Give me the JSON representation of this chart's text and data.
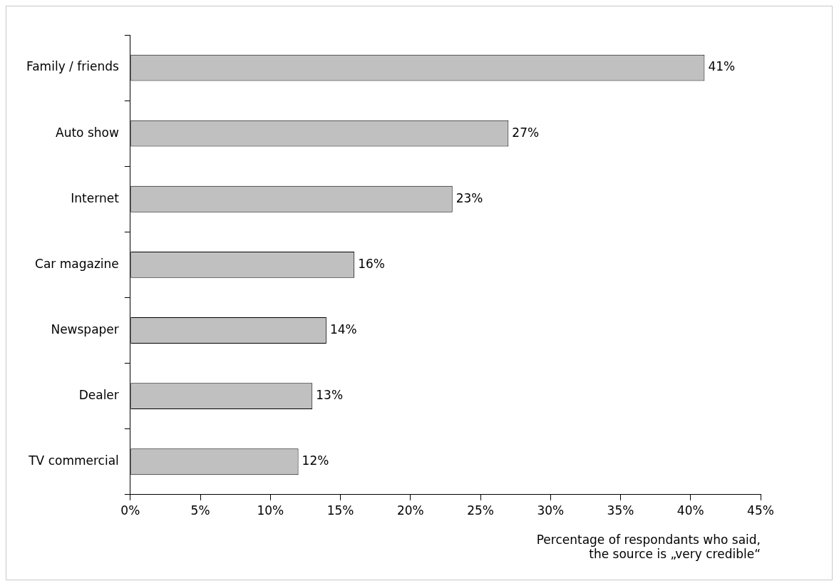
{
  "chart_data": {
    "type": "bar",
    "orientation": "horizontal",
    "categories": [
      "Family / friends",
      "Auto show",
      "Internet",
      "Car magazine",
      "Newspaper",
      "Dealer",
      "TV commercial"
    ],
    "values": [
      41,
      27,
      23,
      16,
      14,
      13,
      12
    ],
    "value_labels": [
      "41%",
      "27%",
      "23%",
      "16%",
      "14%",
      "13%",
      "12%"
    ],
    "color": "#c0c0c0",
    "xlim": [
      0,
      45
    ],
    "xticks": [
      {
        "value": 0,
        "label": "0%"
      },
      {
        "value": 5,
        "label": "5%"
      },
      {
        "value": 10,
        "label": "10%"
      },
      {
        "value": 15,
        "label": "15%"
      },
      {
        "value": 20,
        "label": "20%"
      },
      {
        "value": 25,
        "label": "25%"
      },
      {
        "value": 30,
        "label": "30%"
      },
      {
        "value": 35,
        "label": "35%"
      },
      {
        "value": 40,
        "label": "40%"
      },
      {
        "value": 45,
        "label": "45%"
      }
    ],
    "xlabel": "Percentage of respondants who said,\nthe source is „very credible“",
    "grid": false,
    "legend": false
  }
}
